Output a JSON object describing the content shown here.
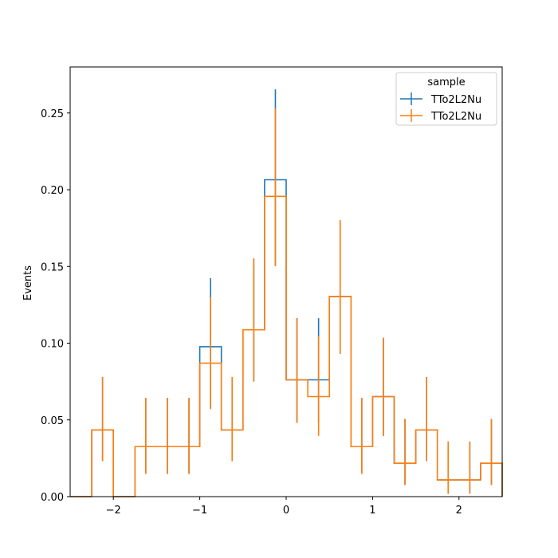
{
  "chart_data": {
    "type": "line",
    "title": "",
    "xlabel": "",
    "ylabel": "Events",
    "xlim": [
      -2.5,
      2.5
    ],
    "ylim": [
      0,
      0.28
    ],
    "x_ticks": [
      -2,
      -1,
      0,
      1,
      2
    ],
    "x_tick_labels": [
      "−2",
      "−1",
      "0",
      "1",
      "2"
    ],
    "y_ticks": [
      0.0,
      0.05,
      0.1,
      0.15,
      0.2,
      0.25
    ],
    "y_tick_labels": [
      "0.00",
      "0.05",
      "0.10",
      "0.15",
      "0.20",
      "0.25"
    ],
    "grid": false,
    "legend": {
      "title": "sample",
      "placement": "top-right",
      "entries": [
        "TTo2L2Nu",
        "TTo2L2Nu"
      ]
    },
    "bin_edges": [
      -2.5,
      -2.25,
      -2.0,
      -1.75,
      -1.5,
      -1.25,
      -1.0,
      -0.75,
      -0.5,
      -0.25,
      0.0,
      0.25,
      0.5,
      0.75,
      1.0,
      1.25,
      1.5,
      1.75,
      2.0,
      2.25,
      2.5
    ],
    "series": [
      {
        "name": "TTo2L2Nu",
        "color": "#1f77b4",
        "values": [
          0,
          0.0435,
          0,
          0.0326,
          0.0326,
          0.0326,
          0.0977,
          0.0435,
          0.1087,
          0.2065,
          0.0761,
          0.0761,
          0.1304,
          0.0326,
          0.0652,
          0.0217,
          0.0435,
          0.0109,
          0.0109,
          0.0217
        ],
        "err_low": [
          0,
          0.0204,
          0,
          0.0178,
          0.0178,
          0.0178,
          0.04,
          0.0204,
          0.0337,
          0.0556,
          0.0279,
          0.0279,
          0.0373,
          0.0178,
          0.0256,
          0.0141,
          0.0204,
          0.009,
          0.009,
          0.0141
        ],
        "err_high": [
          0,
          0.0344,
          0,
          0.0317,
          0.0317,
          0.0317,
          0.0447,
          0.0344,
          0.0465,
          0.0589,
          0.0402,
          0.0402,
          0.0497,
          0.0317,
          0.0383,
          0.0289,
          0.0344,
          0.025,
          0.025,
          0.0289
        ]
      },
      {
        "name": "TTo2L2Nu",
        "color": "#ff7f0e",
        "values": [
          0,
          0.0435,
          0,
          0.0326,
          0.0326,
          0.0326,
          0.087,
          0.0435,
          0.1087,
          0.1957,
          0.0761,
          0.0652,
          0.1304,
          0.0326,
          0.0652,
          0.0217,
          0.0435,
          0.0109,
          0.0109,
          0.0217
        ],
        "err_low": [
          0,
          0.0204,
          0,
          0.0178,
          0.0178,
          0.0178,
          0.03,
          0.0204,
          0.0337,
          0.0456,
          0.0279,
          0.0256,
          0.0373,
          0.0178,
          0.0256,
          0.0141,
          0.0204,
          0.009,
          0.009,
          0.0141
        ],
        "err_high": [
          0,
          0.0344,
          0,
          0.0317,
          0.0317,
          0.0317,
          0.043,
          0.0344,
          0.0465,
          0.0572,
          0.0402,
          0.0393,
          0.0497,
          0.0317,
          0.0383,
          0.0289,
          0.0344,
          0.025,
          0.025,
          0.0289
        ]
      }
    ]
  }
}
